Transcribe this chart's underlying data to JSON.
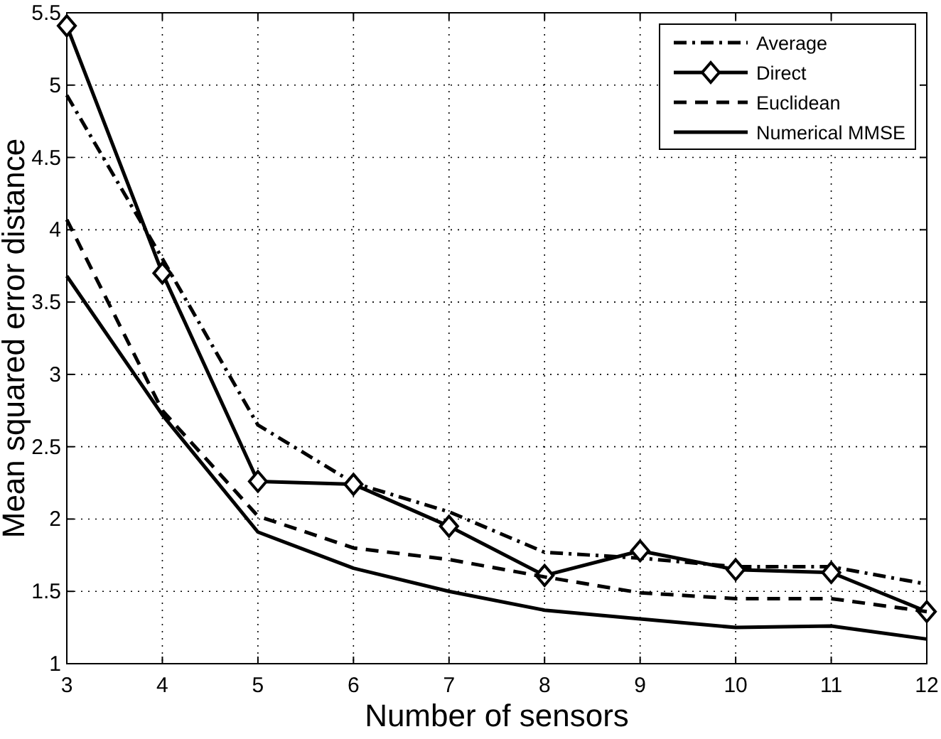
{
  "chart_data": {
    "type": "line",
    "xlabel": "Number of sensors",
    "ylabel": "Mean squared error distance",
    "x": [
      3,
      4,
      5,
      6,
      7,
      8,
      9,
      10,
      11,
      12
    ],
    "xlim": [
      3,
      12
    ],
    "xticks": [
      3,
      4,
      5,
      6,
      7,
      8,
      9,
      10,
      11,
      12
    ],
    "ylim": [
      1,
      5.5
    ],
    "yticks": [
      1,
      1.5,
      2,
      2.5,
      3,
      3.5,
      4,
      4.5,
      5,
      5.5
    ],
    "grid": true,
    "legend": "top right",
    "series": [
      {
        "name": "Average",
        "color": "#000000",
        "line_style": "dashdot",
        "marker": "none",
        "values": [
          4.93,
          3.8,
          2.65,
          2.25,
          2.05,
          1.77,
          1.73,
          1.67,
          1.67,
          1.55
        ]
      },
      {
        "name": "Direct",
        "color": "#000000",
        "line_style": "solid",
        "marker": "diamond",
        "values": [
          5.41,
          3.7,
          2.26,
          2.24,
          1.95,
          1.61,
          1.78,
          1.65,
          1.63,
          1.36
        ]
      },
      {
        "name": "Euclidean",
        "color": "#000000",
        "line_style": "dashed",
        "marker": "none",
        "values": [
          4.07,
          2.75,
          2.02,
          1.8,
          1.72,
          1.6,
          1.49,
          1.45,
          1.45,
          1.36
        ]
      },
      {
        "name": "Numerical MMSE",
        "color": "#000000",
        "line_style": "solid",
        "marker": "none",
        "values": [
          3.68,
          2.72,
          1.91,
          1.66,
          1.5,
          1.37,
          1.31,
          1.25,
          1.26,
          1.17
        ]
      }
    ]
  }
}
